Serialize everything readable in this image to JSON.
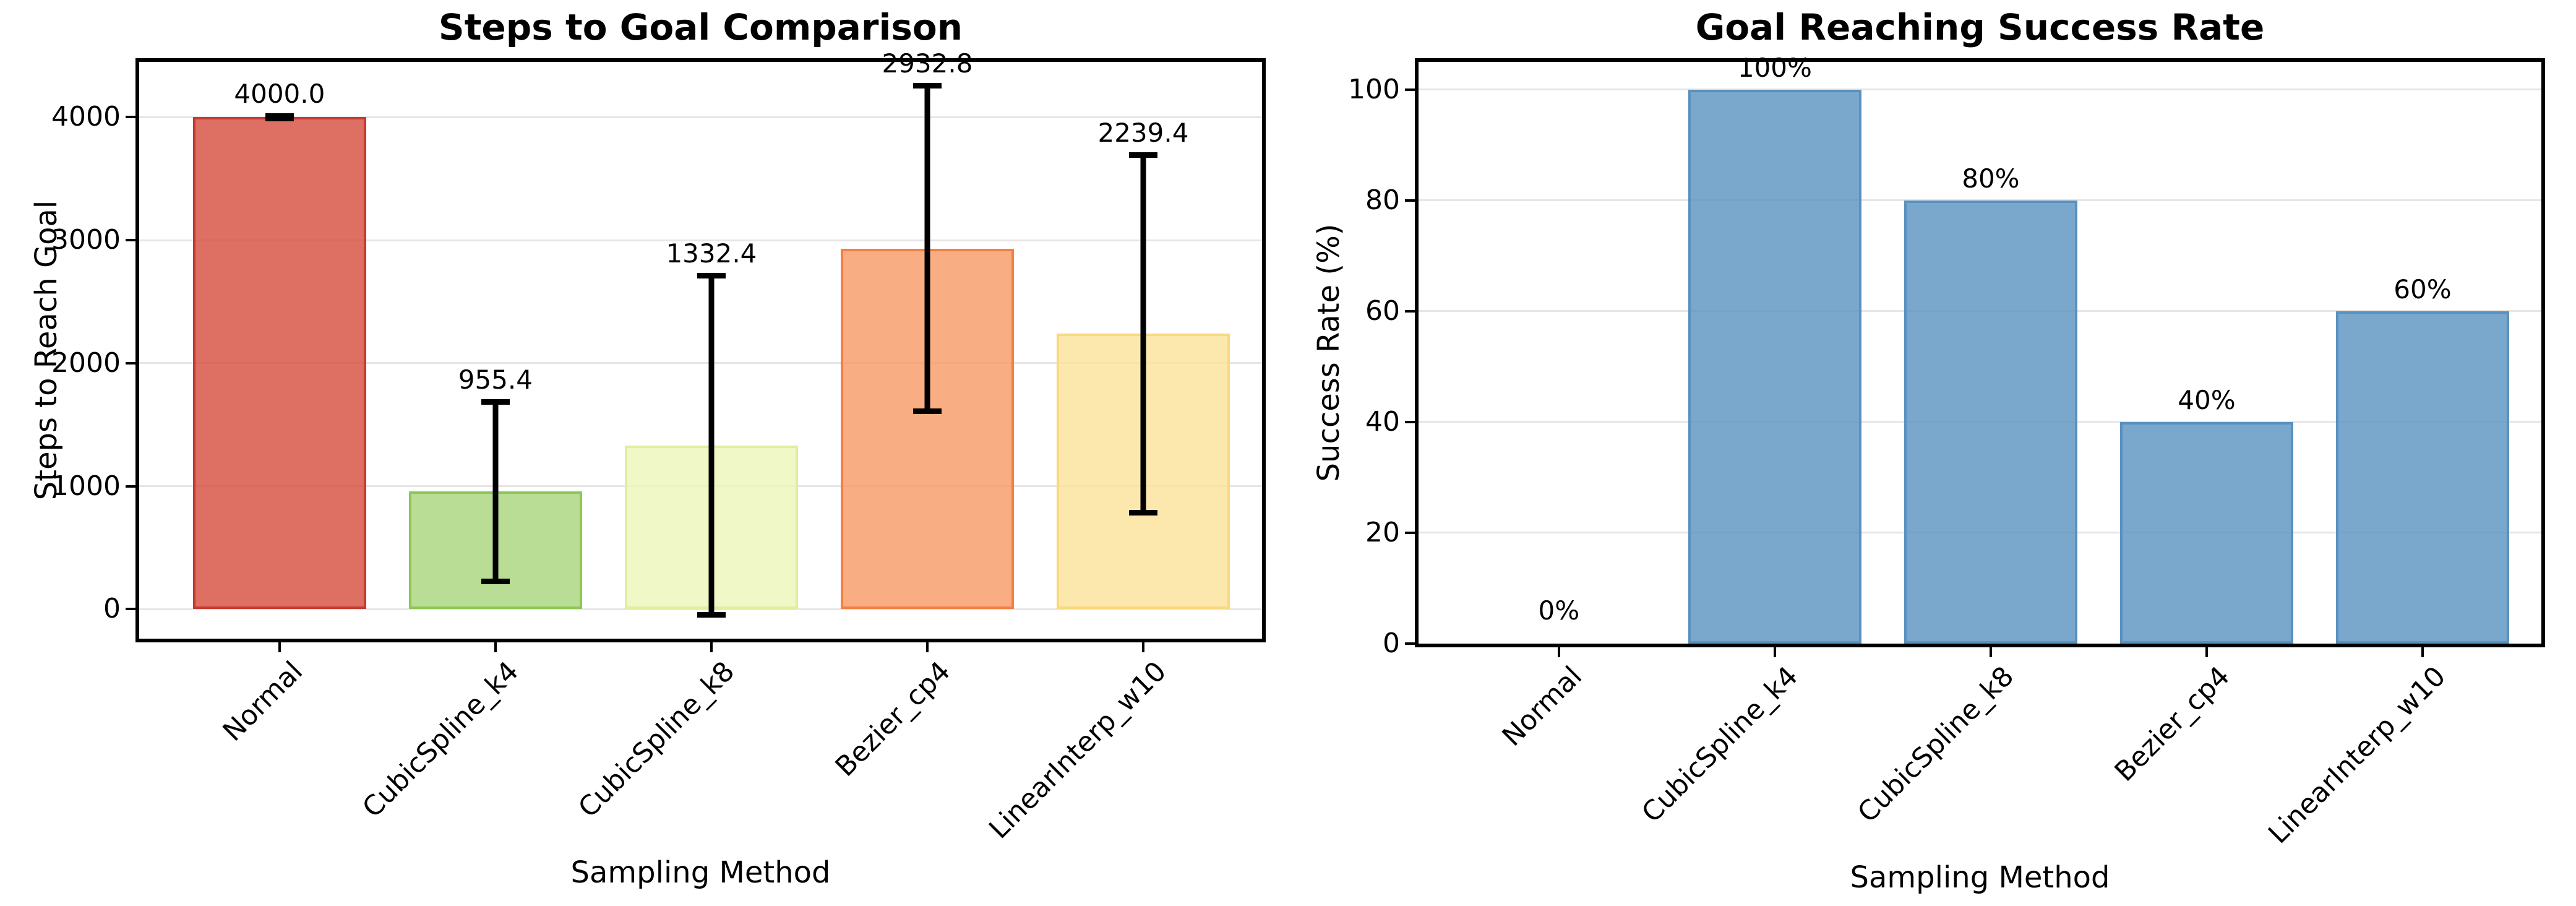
{
  "figure": {
    "background": "#ffffff",
    "grid_color": "#e6e6e6",
    "error_bar_color": "#000000"
  },
  "chart_data": [
    {
      "type": "bar",
      "title": "Steps to Goal Comparison",
      "xlabel": "Sampling Method",
      "ylabel": "Steps to Reach Goal",
      "categories": [
        "Normal",
        "CubicSpline_k4",
        "CubicSpline_k8",
        "Bezier_cp4",
        "LinearInterp_w10"
      ],
      "values": [
        4000.0,
        955.4,
        1332.4,
        2932.8,
        2239.4
      ],
      "errors": [
        10,
        730,
        1380,
        1325,
        1455
      ],
      "value_labels": [
        "4000.0",
        "955.4",
        "1332.4",
        "2932.8",
        "2239.4"
      ],
      "bar_fills": [
        "#d44b3c",
        "#a8d579",
        "#ebf6b8",
        "#f69863",
        "#fbe298"
      ],
      "bar_edges": [
        "#c93a30",
        "#8fc756",
        "#dfefa0",
        "#f58043",
        "#f9d87e"
      ],
      "bar_alpha": 0.8,
      "yticks": [
        0,
        1000,
        2000,
        3000,
        4000
      ],
      "ylim": [
        -240,
        4450
      ],
      "grid": true,
      "legend": null
    },
    {
      "type": "bar",
      "title": "Goal Reaching Success Rate",
      "xlabel": "Sampling Method",
      "ylabel": "Success Rate (%)",
      "categories": [
        "Normal",
        "CubicSpline_k4",
        "CubicSpline_k8",
        "Bezier_cp4",
        "LinearInterp_w10"
      ],
      "values": [
        0,
        100,
        80,
        40,
        60
      ],
      "errors": null,
      "value_labels": [
        "0%",
        "100%",
        "80%",
        "40%",
        "60%"
      ],
      "bar_fills": [
        "#5991bf",
        "#5991bf",
        "#5991bf",
        "#5991bf",
        "#5991bf"
      ],
      "bar_edges": [
        "#5991bf",
        "#5991bf",
        "#5991bf",
        "#5991bf",
        "#5991bf"
      ],
      "bar_alpha": 0.8,
      "yticks": [
        0,
        20,
        40,
        60,
        80,
        100
      ],
      "ylim": [
        0,
        105
      ],
      "grid": true,
      "legend": null
    }
  ]
}
